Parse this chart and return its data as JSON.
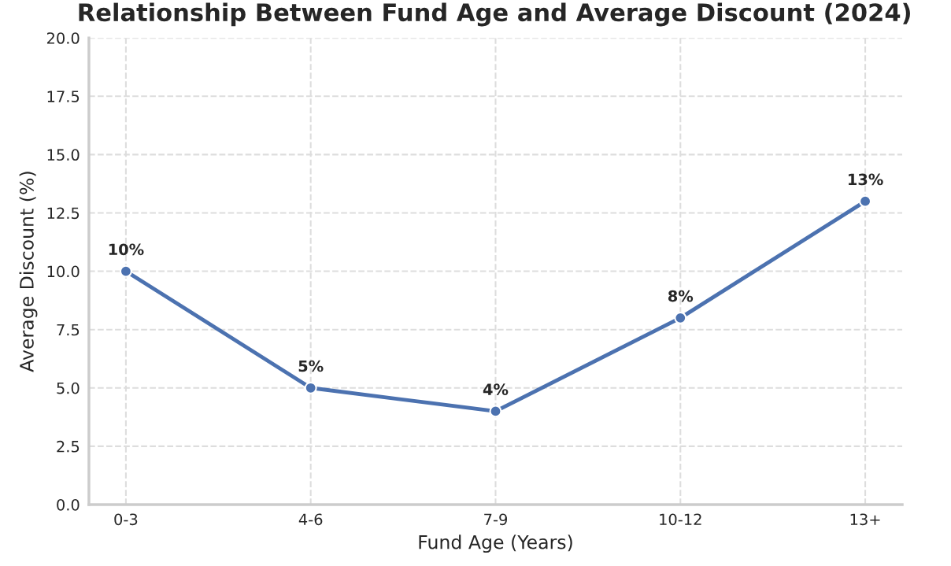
{
  "chart_data": {
    "type": "line",
    "title": "Relationship Between Fund Age and Average Discount (2024)",
    "xlabel": "Fund Age (Years)",
    "ylabel": "Average Discount (%)",
    "categories": [
      "0-3",
      "4-6",
      "7-9",
      "10-12",
      "13+"
    ],
    "series": [
      {
        "color": "#4c72b0",
        "values": [
          10,
          5,
          4,
          8,
          13
        ],
        "value_labels": [
          "10%",
          "5%",
          "4%",
          "8%",
          "13%"
        ]
      }
    ],
    "ylim": [
      0,
      20
    ],
    "yticks": [
      {
        "value": 0,
        "label": "0.0"
      },
      {
        "value": 2.5,
        "label": "2.5"
      },
      {
        "value": 5,
        "label": "5.0"
      },
      {
        "value": 7.5,
        "label": "7.5"
      },
      {
        "value": 10,
        "label": "10.0"
      },
      {
        "value": 12.5,
        "label": "12.5"
      },
      {
        "value": 15,
        "label": "15.0"
      },
      {
        "value": 17.5,
        "label": "17.5"
      },
      {
        "value": 20,
        "label": "20.0"
      }
    ],
    "grid": true,
    "marker": "circle",
    "legend": false
  }
}
